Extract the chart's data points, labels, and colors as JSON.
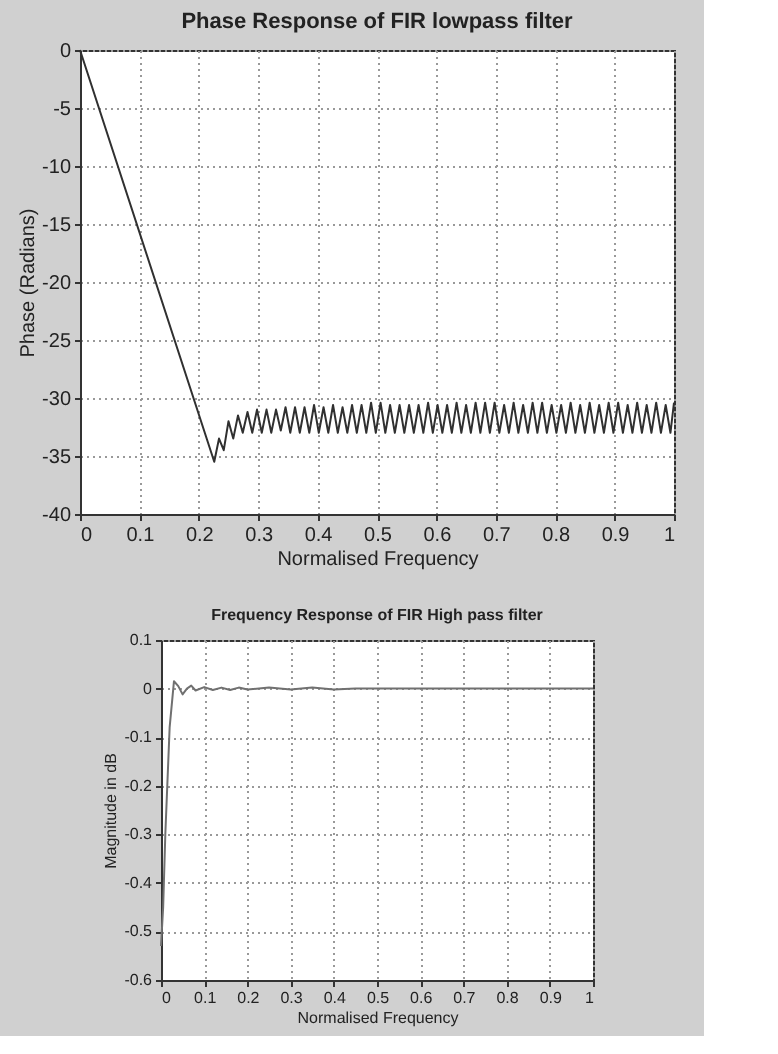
{
  "chart_data": [
    {
      "type": "line",
      "title": "Phase Response of FIR lowpass filter",
      "xlabel": "Normalised Frequency",
      "ylabel": "Phase (Radians)",
      "xlim": [
        0,
        1
      ],
      "ylim": [
        -40,
        0
      ],
      "xticks": [
        0,
        0.1,
        0.2,
        0.3,
        0.4,
        0.5,
        0.6,
        0.7,
        0.8,
        0.9,
        1
      ],
      "yticks": [
        -40,
        -35,
        -30,
        -25,
        -20,
        -15,
        -10,
        -5,
        0
      ],
      "grid": true,
      "line_style": "solid",
      "series": [
        {
          "color": "#303030",
          "x": [
            0,
            0.226,
            0.234,
            0.242,
            0.25,
            0.258,
            0.266,
            0.274,
            0.282,
            0.29,
            0.298,
            0.306,
            0.314,
            0.322,
            0.33,
            0.338,
            0.346,
            0.354,
            0.362,
            0.37,
            0.378,
            0.386,
            0.394,
            0.402,
            0.41,
            0.418,
            0.426,
            0.434,
            0.442,
            0.45,
            0.458,
            0.466,
            0.474,
            0.482,
            0.49,
            0.498,
            0.506,
            0.514,
            0.522,
            0.53,
            0.538,
            0.546,
            0.554,
            0.562,
            0.57,
            0.578,
            0.586,
            0.594,
            0.602,
            0.61,
            0.618,
            0.626,
            0.634,
            0.642,
            0.65,
            0.658,
            0.666,
            0.674,
            0.682,
            0.69,
            0.698,
            0.706,
            0.714,
            0.722,
            0.73,
            0.738,
            0.746,
            0.754,
            0.762,
            0.77,
            0.778,
            0.786,
            0.794,
            0.802,
            0.81,
            0.818,
            0.826,
            0.834,
            0.842,
            0.85,
            0.858,
            0.866,
            0.874,
            0.882,
            0.89,
            0.898,
            0.906,
            0.914,
            0.922,
            0.93,
            0.938,
            0.946,
            0.954,
            0.962,
            0.97,
            0.978,
            0.986,
            0.994,
            1.0
          ],
          "values": [
            0,
            -35.5,
            -33.5,
            -34.5,
            -32,
            -33.5,
            -31.5,
            -33,
            -31.2,
            -33,
            -31,
            -33,
            -31,
            -33,
            -31,
            -32.8,
            -30.8,
            -33,
            -30.8,
            -33,
            -30.8,
            -33,
            -30.6,
            -33,
            -30.8,
            -33,
            -30.6,
            -33,
            -30.8,
            -33,
            -30.6,
            -33,
            -30.6,
            -33,
            -30.4,
            -33,
            -30.4,
            -33,
            -30.6,
            -33,
            -30.6,
            -33,
            -30.6,
            -33,
            -30.6,
            -33,
            -30.4,
            -33,
            -30.6,
            -33,
            -30.6,
            -33,
            -30.4,
            -33,
            -30.6,
            -33,
            -30.4,
            -33,
            -30.4,
            -33,
            -30.4,
            -33,
            -30.6,
            -33,
            -30.4,
            -33,
            -30.6,
            -33,
            -30.4,
            -33,
            -30.4,
            -33,
            -30.6,
            -33,
            -30.6,
            -33,
            -30.4,
            -33,
            -30.6,
            -33,
            -30.4,
            -33,
            -30.6,
            -33,
            -30.4,
            -33,
            -30.4,
            -33,
            -30.6,
            -33,
            -30.4,
            -33,
            -30.6,
            -33,
            -30.4,
            -33,
            -30.6,
            -33,
            -30.4
          ]
        }
      ]
    },
    {
      "type": "line",
      "title": "Frequency Response of FIR High pass filter",
      "xlabel": "Normalised Frequency",
      "ylabel": "Magnitude in dB",
      "xlim": [
        0,
        1
      ],
      "ylim": [
        -0.6,
        0.1
      ],
      "xticks": [
        0,
        0.1,
        0.2,
        0.3,
        0.4,
        0.5,
        0.6,
        0.7,
        0.8,
        0.9,
        1
      ],
      "yticks": [
        -0.6,
        -0.5,
        -0.4,
        -0.3,
        -0.2,
        -0.1,
        0,
        0.1
      ],
      "grid": true,
      "line_style": "solid",
      "series": [
        {
          "color": "#707070",
          "x": [
            0,
            0.005,
            0.01,
            0.02,
            0.03,
            0.04,
            0.05,
            0.06,
            0.07,
            0.08,
            0.1,
            0.12,
            0.14,
            0.16,
            0.18,
            0.2,
            0.25,
            0.3,
            0.35,
            0.4,
            0.45,
            1
          ],
          "values": [
            -0.53,
            -0.45,
            -0.3,
            -0.08,
            0.015,
            0.005,
            -0.012,
            0.0,
            0.006,
            -0.004,
            0.003,
            -0.003,
            0.002,
            -0.003,
            0.002,
            -0.002,
            0.002,
            -0.002,
            0.002,
            -0.002,
            0,
            0
          ]
        }
      ]
    }
  ]
}
